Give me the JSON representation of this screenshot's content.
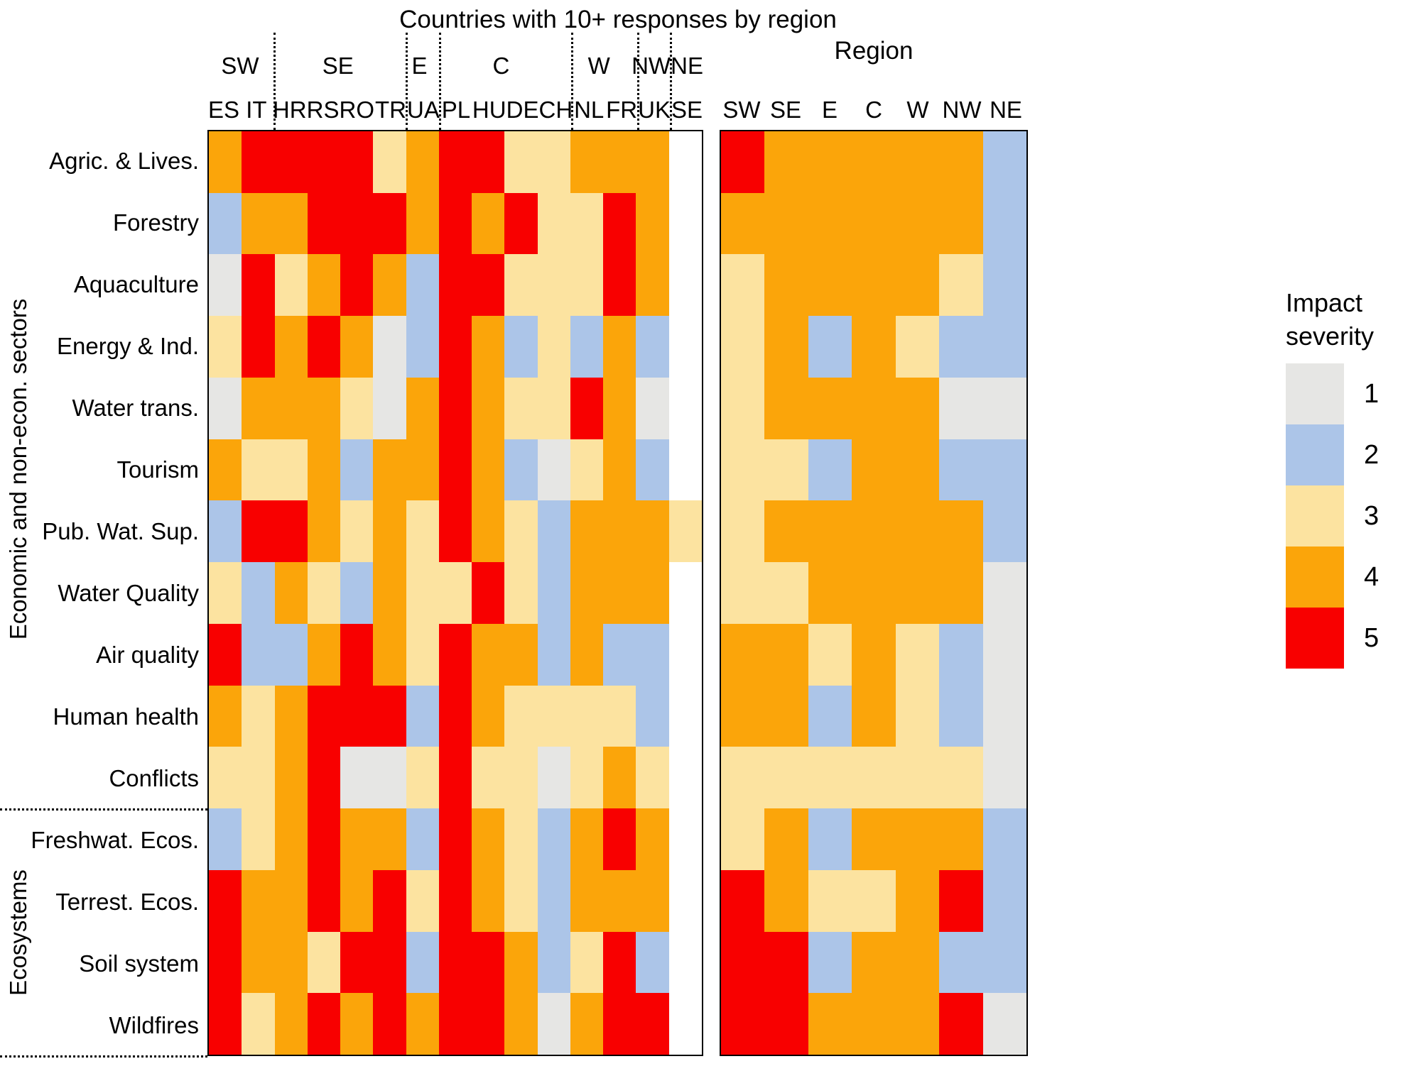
{
  "title": "Countries with 10+ responses by region",
  "right_title": "Region",
  "group_labels": {
    "economic": "Economic and non-econ. sectors",
    "ecosystems": "Ecosystems"
  },
  "legend": {
    "title_line1": "Impact",
    "title_line2": "severity",
    "levels": [
      {
        "label": "1",
        "severity": 1
      },
      {
        "label": "2",
        "severity": 2
      },
      {
        "label": "3",
        "severity": 3
      },
      {
        "label": "4",
        "severity": 4
      },
      {
        "label": "5",
        "severity": 5
      }
    ]
  },
  "chart_data": {
    "type": "heatmap",
    "title": "Countries with 10+ responses by region",
    "legend_title": "Impact severity",
    "value_scale": "Impact severity 1 (low) to 5 (high); 0 = no data (blank cell)",
    "palette": {
      "0": "#FFFFFF",
      "1": "#E6E6E4",
      "2": "#ACC5E8",
      "3": "#FCE3A0",
      "4": "#FBA50A",
      "5": "#F80000"
    },
    "rows": [
      "Agric. & Lives.",
      "Forestry",
      "Aquaculture",
      "Energy & Ind.",
      "Water trans.",
      "Tourism",
      "Pub. Wat. Sup.",
      "Water Quality",
      "Air quality",
      "Human health",
      "Conflicts",
      "Freshwat. Ecos.",
      "Terrest. Ecos.",
      "Soil system",
      "Wildfires"
    ],
    "row_groups": [
      {
        "label": "Economic and non-econ. sectors",
        "row_start": 0,
        "row_end": 10
      },
      {
        "label": "Ecosystems",
        "row_start": 11,
        "row_end": 14
      }
    ],
    "left_panel": {
      "region_groups": [
        {
          "label": "SW",
          "span": 2
        },
        {
          "label": "SE",
          "span": 4
        },
        {
          "label": "E",
          "span": 1
        },
        {
          "label": "C",
          "span": 4
        },
        {
          "label": "W",
          "span": 2
        },
        {
          "label": "NW",
          "span": 1
        },
        {
          "label": "NE",
          "span": 1
        }
      ],
      "columns": [
        "ES",
        "IT",
        "HR",
        "RS",
        "RO",
        "TR",
        "UA",
        "PL",
        "HU",
        "DE",
        "CH",
        "NL",
        "FR",
        "UK",
        "SE"
      ],
      "values": [
        [
          4,
          5,
          5,
          5,
          5,
          3,
          4,
          5,
          5,
          3,
          3,
          4,
          4,
          4,
          0
        ],
        [
          2,
          4,
          4,
          5,
          5,
          5,
          4,
          5,
          4,
          5,
          3,
          3,
          5,
          4,
          0
        ],
        [
          1,
          5,
          3,
          4,
          5,
          4,
          2,
          5,
          5,
          3,
          3,
          3,
          5,
          4,
          0
        ],
        [
          3,
          5,
          4,
          5,
          4,
          1,
          2,
          5,
          4,
          2,
          3,
          2,
          4,
          2,
          0
        ],
        [
          1,
          4,
          4,
          4,
          3,
          1,
          4,
          5,
          4,
          3,
          3,
          5,
          4,
          1,
          0
        ],
        [
          4,
          3,
          3,
          4,
          2,
          4,
          4,
          5,
          4,
          2,
          1,
          3,
          4,
          2,
          0
        ],
        [
          2,
          5,
          5,
          4,
          3,
          4,
          3,
          5,
          4,
          3,
          2,
          4,
          4,
          4,
          3
        ],
        [
          3,
          2,
          4,
          3,
          2,
          4,
          3,
          3,
          5,
          3,
          2,
          4,
          4,
          4,
          0
        ],
        [
          5,
          2,
          2,
          4,
          5,
          4,
          3,
          5,
          4,
          4,
          2,
          4,
          2,
          2,
          0
        ],
        [
          4,
          3,
          4,
          5,
          5,
          5,
          2,
          5,
          4,
          3,
          3,
          3,
          3,
          2,
          0
        ],
        [
          3,
          3,
          4,
          5,
          1,
          1,
          3,
          5,
          3,
          3,
          1,
          3,
          4,
          3,
          0
        ],
        [
          2,
          3,
          4,
          5,
          4,
          4,
          2,
          5,
          4,
          3,
          2,
          4,
          5,
          4,
          0
        ],
        [
          5,
          4,
          4,
          5,
          4,
          5,
          3,
          5,
          4,
          3,
          2,
          4,
          4,
          4,
          0
        ],
        [
          5,
          4,
          4,
          3,
          5,
          5,
          2,
          5,
          5,
          4,
          2,
          3,
          5,
          2,
          0
        ],
        [
          5,
          3,
          4,
          5,
          4,
          5,
          4,
          5,
          5,
          4,
          1,
          4,
          5,
          5,
          0
        ]
      ]
    },
    "right_panel": {
      "columns": [
        "SW",
        "SE",
        "E",
        "C",
        "W",
        "NW",
        "NE"
      ],
      "values": [
        [
          5,
          4,
          4,
          4,
          4,
          4,
          2
        ],
        [
          4,
          4,
          4,
          4,
          4,
          4,
          2
        ],
        [
          3,
          4,
          4,
          4,
          4,
          3,
          2
        ],
        [
          3,
          4,
          2,
          4,
          3,
          2,
          2
        ],
        [
          3,
          4,
          4,
          4,
          4,
          1,
          1
        ],
        [
          3,
          3,
          2,
          4,
          4,
          2,
          2
        ],
        [
          3,
          4,
          4,
          4,
          4,
          4,
          2
        ],
        [
          3,
          3,
          4,
          4,
          4,
          4,
          1
        ],
        [
          4,
          4,
          3,
          4,
          3,
          2,
          1
        ],
        [
          4,
          4,
          2,
          4,
          3,
          2,
          1
        ],
        [
          3,
          3,
          3,
          3,
          3,
          3,
          1
        ],
        [
          3,
          4,
          2,
          4,
          4,
          4,
          2
        ],
        [
          5,
          4,
          3,
          3,
          4,
          5,
          2
        ],
        [
          5,
          5,
          2,
          4,
          4,
          2,
          2
        ],
        [
          5,
          5,
          4,
          4,
          4,
          5,
          1
        ]
      ]
    }
  }
}
